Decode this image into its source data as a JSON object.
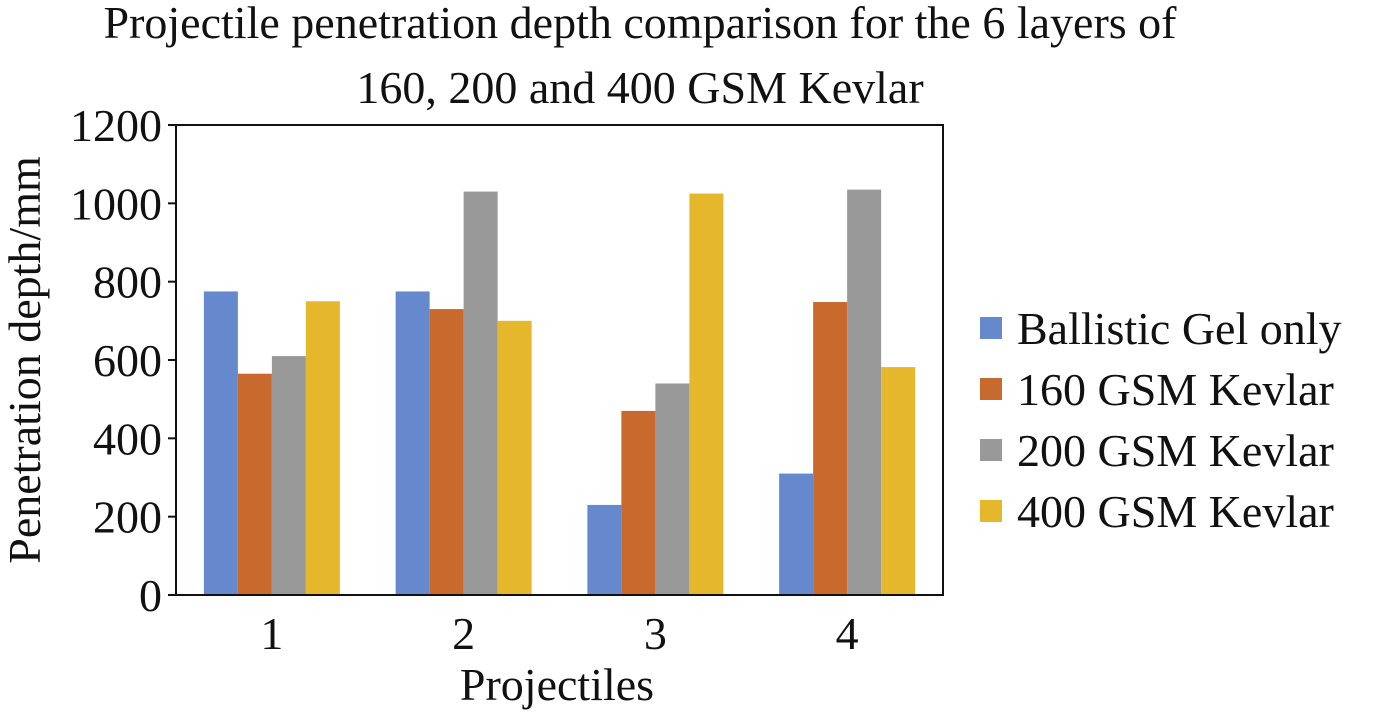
{
  "chart_data": {
    "type": "bar",
    "title_lines": [
      "Projectile penetration depth comparison for the 6 layers of",
      "160, 200 and 400 GSM Kevlar"
    ],
    "xlabel": "Projectiles",
    "ylabel": "Penetration depth/mm",
    "categories": [
      "1",
      "2",
      "3",
      "4"
    ],
    "ylim": [
      0,
      1200
    ],
    "yticks": [
      0,
      200,
      400,
      600,
      800,
      1000,
      1200
    ],
    "grid": false,
    "legend_position": "right",
    "series": [
      {
        "name": "Ballistic Gel only",
        "color": "#6688CC",
        "values": [
          775,
          775,
          230,
          310
        ]
      },
      {
        "name": "160 GSM Kevlar",
        "color": "#C8692E",
        "values": [
          565,
          730,
          470,
          748
        ]
      },
      {
        "name": "200 GSM Kevlar",
        "color": "#999999",
        "values": [
          610,
          1030,
          540,
          1035
        ]
      },
      {
        "name": "400 GSM Kevlar",
        "color": "#E5B82B",
        "values": [
          750,
          700,
          1025,
          582
        ]
      }
    ]
  }
}
